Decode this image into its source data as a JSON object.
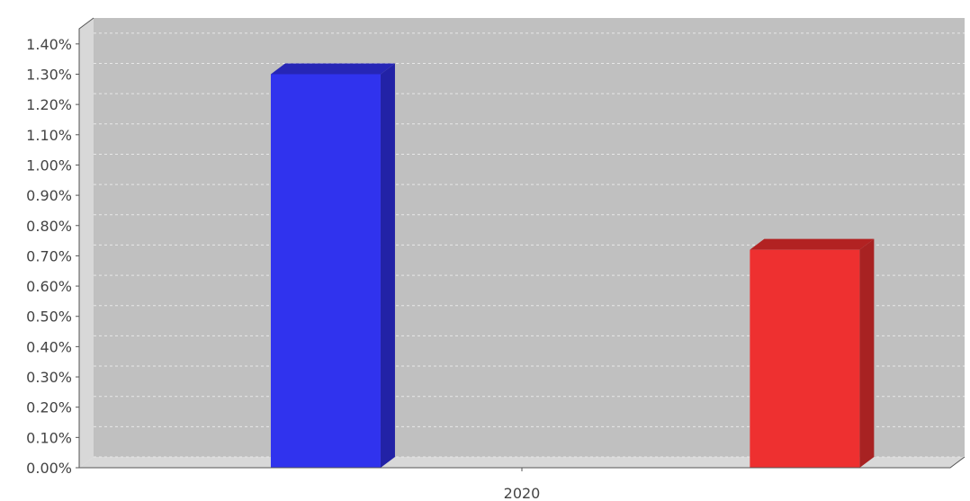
{
  "chart_data": {
    "type": "bar",
    "categories": [
      "2020"
    ],
    "series": [
      {
        "values": [
          1.3
        ],
        "color": "#3033ee",
        "side_color": "#2222a6",
        "top_color": "#2626b6"
      },
      {
        "values": [
          0.72
        ],
        "color": "#ee3030",
        "side_color": "#a82222",
        "top_color": "#b22222"
      }
    ],
    "y_ticks": [
      "0.00%",
      "0.10%",
      "0.20%",
      "0.30%",
      "0.40%",
      "0.50%",
      "0.60%",
      "0.70%",
      "0.80%",
      "0.90%",
      "1.00%",
      "1.10%",
      "1.20%",
      "1.30%",
      "1.40%"
    ],
    "ylim": [
      0,
      1.45
    ],
    "y_unit": "%",
    "grid": true,
    "legend": "none",
    "plot_background": "#c0c0c0",
    "wall_color": "#d8d8d8",
    "title": "",
    "xlabel": "",
    "ylabel": ""
  }
}
